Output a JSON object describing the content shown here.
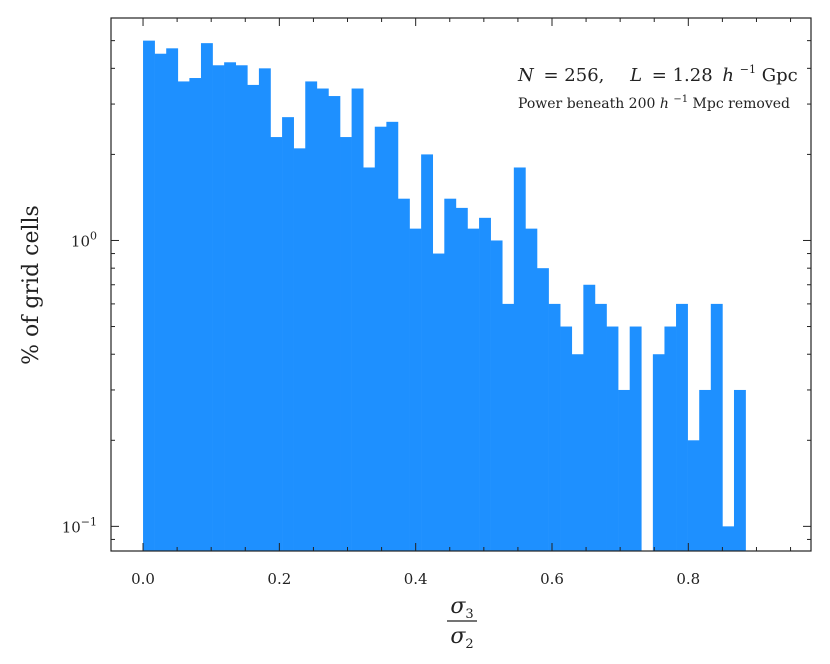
{
  "chart_data": {
    "type": "bar",
    "subtype": "histogram",
    "title": "",
    "xlabel": "σ3 / σ2",
    "ylabel": "% of grid cells",
    "y_scale": "log",
    "xlim": [
      -0.047,
      0.98
    ],
    "ylim": [
      0.082,
      6.0
    ],
    "grid": false,
    "bar_color": "#1e90ff",
    "bin_width": 0.017,
    "x_ticks": [
      {
        "value": 0.0,
        "label": "0.0"
      },
      {
        "value": 0.2,
        "label": "0.2"
      },
      {
        "value": 0.4,
        "label": "0.4"
      },
      {
        "value": 0.6,
        "label": "0.6"
      },
      {
        "value": 0.8,
        "label": "0.8"
      }
    ],
    "y_ticks": [
      {
        "value": 0.1,
        "label": "10",
        "exp": "−1"
      },
      {
        "value": 1,
        "label": "10",
        "exp": "0"
      }
    ],
    "annotations": {
      "line1": {
        "n_label": "N",
        "n_value": "= 256,",
        "l_label": "L",
        "l_value": "= 1.28",
        "h": "h",
        "h_exp": "−1",
        "unit": "Gpc"
      },
      "line2": {
        "prefix": "Power beneath 200",
        "h": "h",
        "h_exp": "−1",
        "suffix": "Mpc removed"
      }
    },
    "bin_left_edges": [
      0.0,
      0.017,
      0.034,
      0.051,
      0.068,
      0.085,
      0.102,
      0.119,
      0.136,
      0.153,
      0.17,
      0.187,
      0.204,
      0.221,
      0.238,
      0.255,
      0.272,
      0.289,
      0.306,
      0.323,
      0.34,
      0.357,
      0.374,
      0.391,
      0.408,
      0.425,
      0.442,
      0.459,
      0.476,
      0.493,
      0.51,
      0.527,
      0.544,
      0.561,
      0.578,
      0.595,
      0.612,
      0.629,
      0.646,
      0.663,
      0.68,
      0.697,
      0.714,
      0.731,
      0.748,
      0.765,
      0.782,
      0.799,
      0.816,
      0.833,
      0.85,
      0.867,
      0.884,
      0.901,
      0.918
    ],
    "values": [
      5.0,
      4.5,
      4.7,
      3.6,
      3.7,
      4.9,
      4.1,
      4.2,
      4.1,
      3.5,
      4.0,
      2.3,
      2.7,
      2.1,
      3.6,
      3.4,
      3.2,
      2.3,
      3.4,
      1.8,
      2.5,
      2.6,
      1.4,
      1.1,
      2.0,
      0.9,
      1.4,
      1.3,
      1.1,
      1.2,
      1.0,
      0.6,
      1.8,
      1.1,
      0.8,
      0.6,
      0.5,
      0.4,
      0.7,
      0.6,
      0.5,
      0.3,
      0.5,
      0.0,
      0.4,
      0.5,
      0.6,
      0.2,
      0.3,
      0.6,
      0.1,
      0.3,
      0,
      0,
      0
    ]
  }
}
